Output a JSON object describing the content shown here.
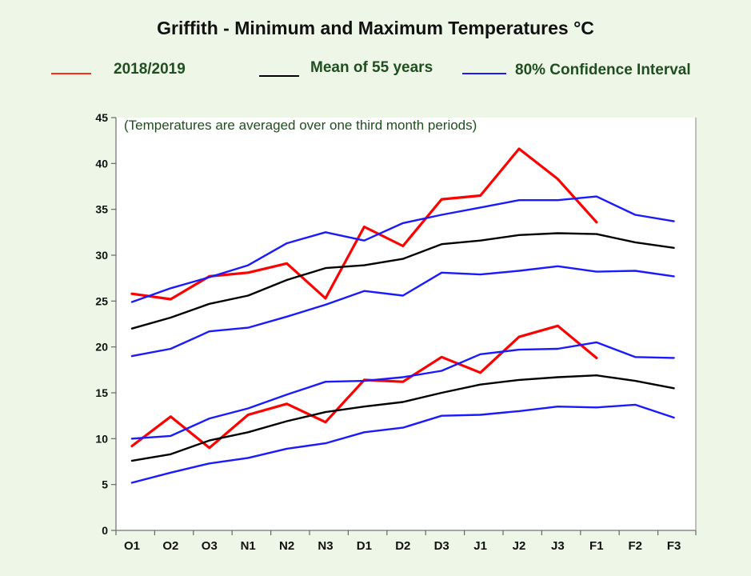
{
  "chart_data": {
    "type": "line",
    "title": "Griffith - Minimum and Maximum Temperatures °C",
    "annotation": "(Temperatures are averaged over one third month periods)",
    "categories": [
      "O1",
      "O2",
      "O3",
      "N1",
      "N2",
      "N3",
      "D1",
      "D2",
      "D3",
      "J1",
      "J2",
      "J3",
      "F1",
      "F2",
      "F3"
    ],
    "ylim": [
      0,
      45
    ],
    "yticks": [
      0,
      5,
      10,
      15,
      20,
      25,
      30,
      35,
      40,
      45
    ],
    "grid": false,
    "legend": {
      "placement": "top",
      "entries": [
        {
          "label": "2018/2019",
          "color": "#ff2a1a"
        },
        {
          "label": "Mean of 55 years",
          "color": "#000000"
        },
        {
          "label": "80% Confidence Interval",
          "color": "#1a1aff"
        }
      ]
    },
    "series": [
      {
        "legend": "2018/2019",
        "role": "max",
        "color": "#ff0000",
        "values": [
          25.8,
          25.2,
          27.7,
          28.1,
          29.1,
          25.3,
          33.1,
          31.0,
          36.1,
          36.5,
          41.6,
          38.3,
          33.6,
          null,
          null
        ]
      },
      {
        "legend": "Mean of 55 years",
        "role": "max",
        "color": "#000000",
        "values": [
          22.0,
          23.2,
          24.7,
          25.6,
          27.3,
          28.6,
          28.9,
          29.6,
          31.2,
          31.6,
          32.2,
          32.4,
          32.3,
          31.4,
          30.8
        ]
      },
      {
        "legend": "80% Confidence Interval",
        "role": "max-upper",
        "color": "#1a1aff",
        "values": [
          24.9,
          26.4,
          27.6,
          28.9,
          31.3,
          32.5,
          31.6,
          33.5,
          34.4,
          35.2,
          36.0,
          36.0,
          36.4,
          34.4,
          33.7
        ]
      },
      {
        "legend": "80% Confidence Interval",
        "role": "max-lower",
        "color": "#1a1aff",
        "values": [
          19.0,
          19.8,
          21.7,
          22.1,
          23.3,
          24.6,
          26.1,
          25.6,
          28.1,
          27.9,
          28.3,
          28.8,
          28.2,
          28.3,
          27.7
        ]
      },
      {
        "legend": "2018/2019",
        "role": "min",
        "color": "#ff0000",
        "values": [
          9.2,
          12.4,
          9.0,
          12.6,
          13.8,
          11.8,
          16.4,
          16.2,
          18.9,
          17.2,
          21.1,
          22.3,
          18.8,
          null,
          null
        ]
      },
      {
        "legend": "Mean of 55 years",
        "role": "min",
        "color": "#000000",
        "values": [
          7.6,
          8.3,
          9.8,
          10.7,
          11.9,
          12.9,
          13.5,
          14.0,
          15.0,
          15.9,
          16.4,
          16.7,
          16.9,
          16.3,
          15.5
        ]
      },
      {
        "legend": "80% Confidence Interval",
        "role": "min-upper",
        "color": "#1a1aff",
        "values": [
          10.0,
          10.3,
          12.2,
          13.3,
          14.8,
          16.2,
          16.3,
          16.7,
          17.4,
          19.2,
          19.7,
          19.8,
          20.5,
          18.9,
          18.8
        ]
      },
      {
        "legend": "80% Confidence Interval",
        "role": "min-lower",
        "color": "#1a1aff",
        "values": [
          5.2,
          6.3,
          7.3,
          7.9,
          8.9,
          9.5,
          10.7,
          11.2,
          12.5,
          12.6,
          13.0,
          13.5,
          13.4,
          13.7,
          12.3
        ]
      }
    ]
  }
}
